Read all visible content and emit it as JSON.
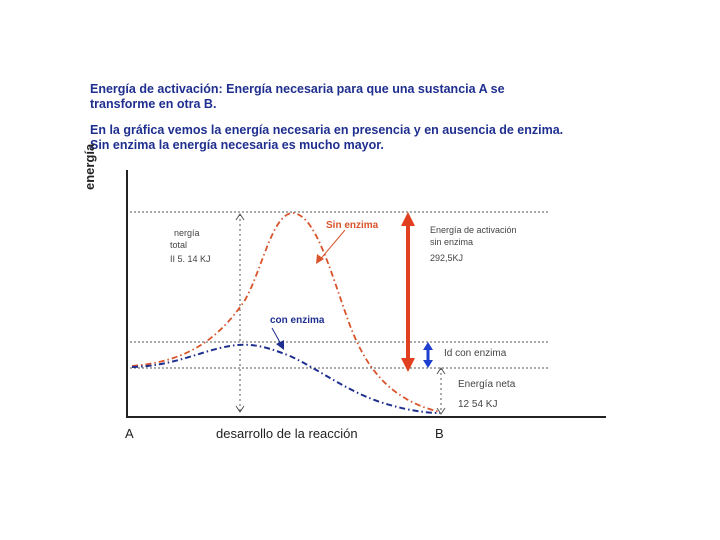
{
  "intro": {
    "paragraph1": "Energía de activación: Energía necesaria para que una sustancia A se transforme en otra B.",
    "paragraph2": "En la gráfica vemos la energía necesaria en presencia y en ausencia de enzima. Sin enzima la energía necesaria es mucho mayor."
  },
  "diagram": {
    "y_axis_label": "energía",
    "x_start": "A",
    "x_end": "B",
    "x_axis_label": "desarrollo de la reacción",
    "total_energy_label": [
      "nergía",
      "total",
      "II 5. 14 KJ"
    ],
    "sin_enzima": "Sin enzima",
    "con_enzima": "con enzima",
    "activation_label": [
      "Energía de activación",
      "sin enzima",
      "292,5KJ"
    ],
    "con_enzima_side_label": "Id con enzima",
    "net_energy_label": [
      "Energía neta",
      "12 54 KJ"
    ],
    "colors": {
      "sin_enzima": "#d9542b",
      "con_enzima": "#1f2f8f",
      "arrow_red": "#e0401f",
      "arrow_blue": "#1f3fd0"
    }
  }
}
